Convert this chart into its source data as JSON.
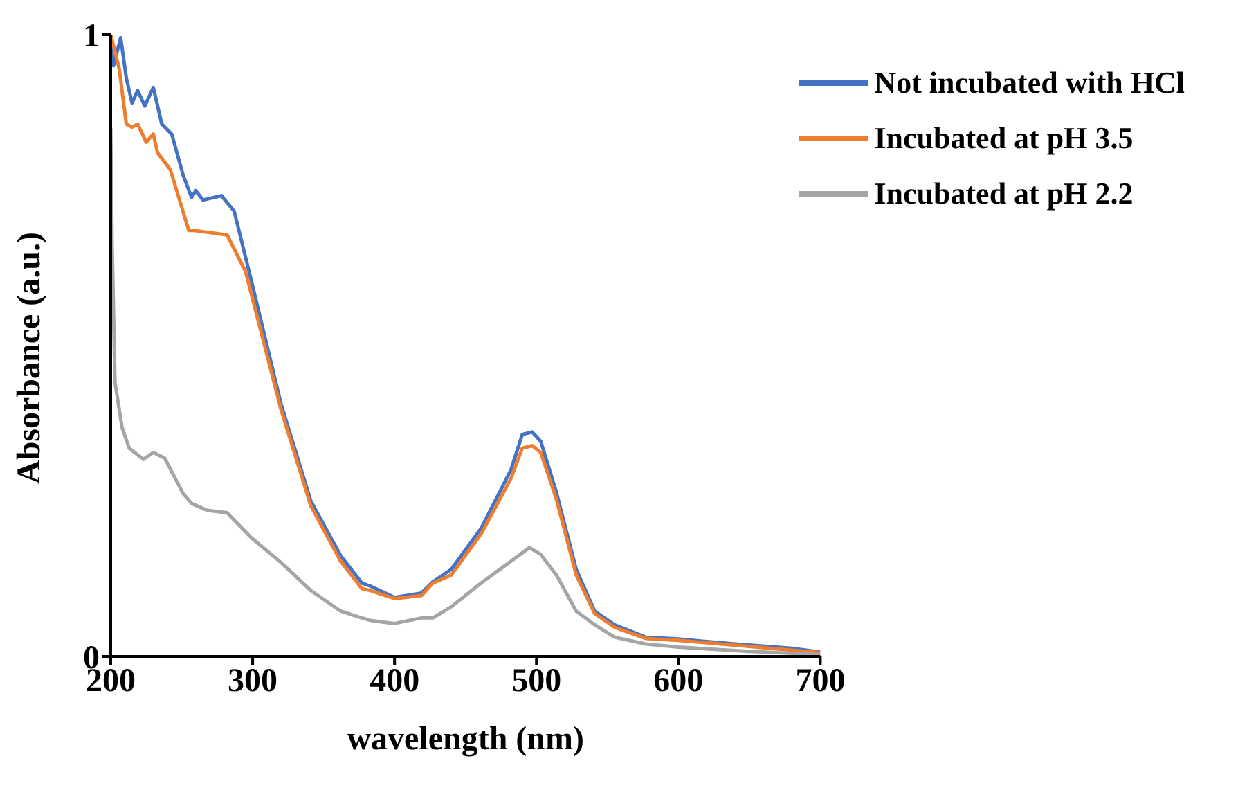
{
  "chart_data": {
    "type": "line",
    "xlabel": "wavelength (nm)",
    "ylabel": "Absorbance (a.u.)",
    "xlim": [
      200,
      700
    ],
    "xticks": [
      200,
      300,
      400,
      500,
      600,
      700
    ],
    "ylim": [
      0,
      1
    ],
    "yticks": [
      0,
      1
    ],
    "grid": false,
    "legend": "top right",
    "marker": "none",
    "line_style": "solid",
    "series": [
      {
        "name": "Not incubated with HCl",
        "color": "#4472c4",
        "x": [
          200,
          202,
          207,
          211,
          215,
          219,
          224,
          230,
          236,
          243,
          251,
          257,
          260,
          265,
          278,
          287,
          299,
          320,
          341,
          362,
          377,
          383,
          400,
          419,
          427,
          440,
          461,
          482,
          490,
          497,
          503,
          514,
          528,
          541,
          555,
          577,
          600,
          640,
          680,
          700
        ],
        "values": [
          0.99,
          0.95,
          0.995,
          0.93,
          0.89,
          0.91,
          0.885,
          0.915,
          0.856,
          0.84,
          0.774,
          0.738,
          0.749,
          0.734,
          0.741,
          0.716,
          0.605,
          0.406,
          0.25,
          0.162,
          0.118,
          0.113,
          0.095,
          0.102,
          0.12,
          0.14,
          0.206,
          0.3,
          0.357,
          0.361,
          0.346,
          0.264,
          0.14,
          0.073,
          0.051,
          0.031,
          0.028,
          0.02,
          0.013,
          0.007
        ]
      },
      {
        "name": "Incubated at pH 3.5",
        "color": "#ed7d31",
        "x": [
          200,
          206,
          211,
          215,
          219,
          225,
          230,
          233,
          242,
          255,
          259,
          282,
          295,
          320,
          341,
          362,
          377,
          383,
          400,
          419,
          427,
          440,
          461,
          482,
          490,
          497,
          503,
          514,
          528,
          541,
          555,
          577,
          600,
          640,
          680,
          700
        ],
        "values": [
          1.0,
          0.945,
          0.856,
          0.851,
          0.856,
          0.827,
          0.84,
          0.81,
          0.783,
          0.685,
          0.685,
          0.678,
          0.619,
          0.397,
          0.242,
          0.153,
          0.109,
          0.106,
          0.093,
          0.098,
          0.118,
          0.131,
          0.197,
          0.286,
          0.335,
          0.339,
          0.328,
          0.253,
          0.131,
          0.069,
          0.047,
          0.029,
          0.026,
          0.018,
          0.01,
          0.006
        ]
      },
      {
        "name": "Incubated at pH 2.2",
        "color": "#a5a5a5",
        "x": [
          200,
          201,
          203,
          208,
          213,
          223,
          230,
          238,
          251,
          257,
          268,
          282,
          299,
          320,
          341,
          362,
          377,
          383,
          400,
          419,
          427,
          440,
          461,
          482,
          495,
          503,
          514,
          528,
          541,
          555,
          577,
          600,
          650,
          700
        ],
        "values": [
          0.85,
          0.663,
          0.441,
          0.368,
          0.335,
          0.317,
          0.328,
          0.319,
          0.262,
          0.246,
          0.235,
          0.231,
          0.191,
          0.151,
          0.106,
          0.073,
          0.062,
          0.058,
          0.053,
          0.062,
          0.062,
          0.08,
          0.118,
          0.153,
          0.175,
          0.164,
          0.131,
          0.073,
          0.051,
          0.031,
          0.02,
          0.015,
          0.008,
          0.003
        ]
      }
    ]
  }
}
